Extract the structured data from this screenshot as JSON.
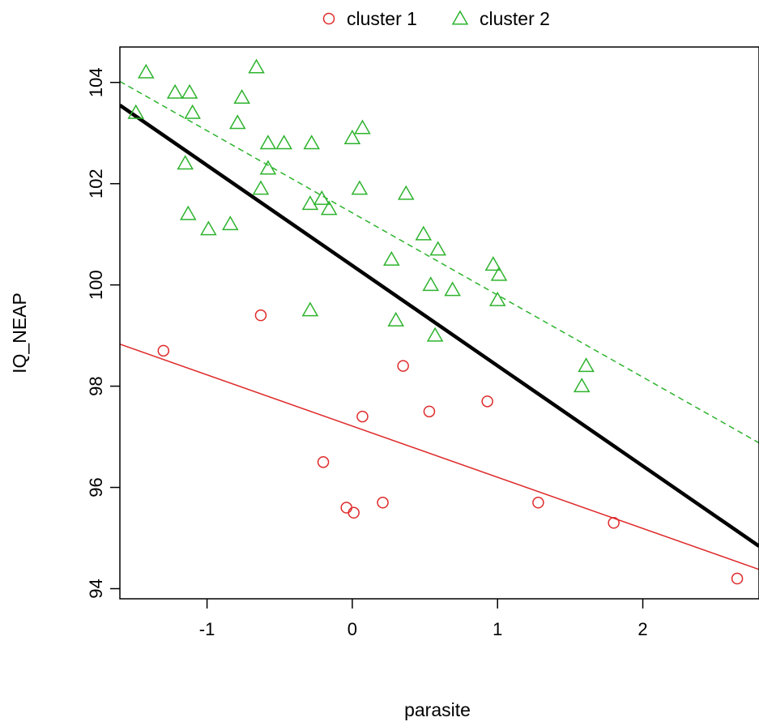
{
  "chart_data": {
    "type": "scatter",
    "title": "",
    "xlabel": "parasite",
    "ylabel": "IQ_NEAP",
    "xlim": [
      -1.6,
      2.8
    ],
    "ylim": [
      93.8,
      104.7
    ],
    "x_ticks": [
      -1,
      0,
      1,
      2
    ],
    "x_tick_labels": [
      "-1",
      "0",
      "1",
      "2"
    ],
    "y_ticks": [
      94,
      96,
      98,
      100,
      102,
      104
    ],
    "y_tick_labels": [
      "94",
      "96",
      "98",
      "100",
      "102",
      "104"
    ],
    "grid": false,
    "legend_position": "top-center, outside plot",
    "series": [
      {
        "name": "cluster 1",
        "marker": "circle",
        "color": "#df2a2a",
        "points": [
          {
            "x": -1.3,
            "y": 98.7
          },
          {
            "x": -0.63,
            "y": 99.4
          },
          {
            "x": 0.35,
            "y": 98.4
          },
          {
            "x": 0.93,
            "y": 97.7
          },
          {
            "x": 0.53,
            "y": 97.5
          },
          {
            "x": 0.07,
            "y": 97.4
          },
          {
            "x": -0.2,
            "y": 96.5
          },
          {
            "x": -0.04,
            "y": 95.6
          },
          {
            "x": 0.01,
            "y": 95.5
          },
          {
            "x": 0.21,
            "y": 95.7
          },
          {
            "x": 1.28,
            "y": 95.7
          },
          {
            "x": 1.8,
            "y": 95.3
          },
          {
            "x": 2.65,
            "y": 94.2
          }
        ],
        "fit_line": {
          "x": [
            -1.6,
            2.8
          ],
          "y": [
            98.83,
            94.38
          ],
          "style": "solid"
        }
      },
      {
        "name": "cluster 2",
        "marker": "triangle",
        "color": "#2db32d",
        "points": [
          {
            "x": -1.42,
            "y": 104.2
          },
          {
            "x": -0.66,
            "y": 104.3
          },
          {
            "x": -1.49,
            "y": 103.4
          },
          {
            "x": -1.22,
            "y": 103.8
          },
          {
            "x": -1.12,
            "y": 103.8
          },
          {
            "x": -1.1,
            "y": 103.4
          },
          {
            "x": -0.76,
            "y": 103.7
          },
          {
            "x": -0.79,
            "y": 103.2
          },
          {
            "x": -1.15,
            "y": 102.4
          },
          {
            "x": -1.13,
            "y": 101.4
          },
          {
            "x": -0.99,
            "y": 101.1
          },
          {
            "x": -0.84,
            "y": 101.2
          },
          {
            "x": -0.58,
            "y": 102.8
          },
          {
            "x": -0.47,
            "y": 102.8
          },
          {
            "x": -0.28,
            "y": 102.8
          },
          {
            "x": -0.58,
            "y": 102.3
          },
          {
            "x": -0.63,
            "y": 101.9
          },
          {
            "x": -0.29,
            "y": 101.6
          },
          {
            "x": -0.21,
            "y": 101.7
          },
          {
            "x": -0.16,
            "y": 101.5
          },
          {
            "x": 0.0,
            "y": 102.9
          },
          {
            "x": 0.07,
            "y": 103.1
          },
          {
            "x": 0.05,
            "y": 101.9
          },
          {
            "x": 0.37,
            "y": 101.8
          },
          {
            "x": 0.49,
            "y": 101.0
          },
          {
            "x": 0.59,
            "y": 100.7
          },
          {
            "x": 0.27,
            "y": 100.5
          },
          {
            "x": 0.54,
            "y": 100.0
          },
          {
            "x": 0.69,
            "y": 99.9
          },
          {
            "x": 0.97,
            "y": 100.4
          },
          {
            "x": 1.01,
            "y": 100.2
          },
          {
            "x": 1.0,
            "y": 99.7
          },
          {
            "x": -0.29,
            "y": 99.5
          },
          {
            "x": 0.3,
            "y": 99.3
          },
          {
            "x": 0.57,
            "y": 99.0
          },
          {
            "x": 1.61,
            "y": 98.4
          },
          {
            "x": 1.58,
            "y": 98.0
          }
        ],
        "fit_line": {
          "x": [
            -1.6,
            2.8
          ],
          "y": [
            104.02,
            96.88
          ],
          "style": "dashed"
        }
      }
    ],
    "overall_fit_line": {
      "x": [
        -1.6,
        2.8
      ],
      "y": [
        103.55,
        94.84
      ],
      "color": "#000000",
      "style": "solid-thick"
    }
  }
}
